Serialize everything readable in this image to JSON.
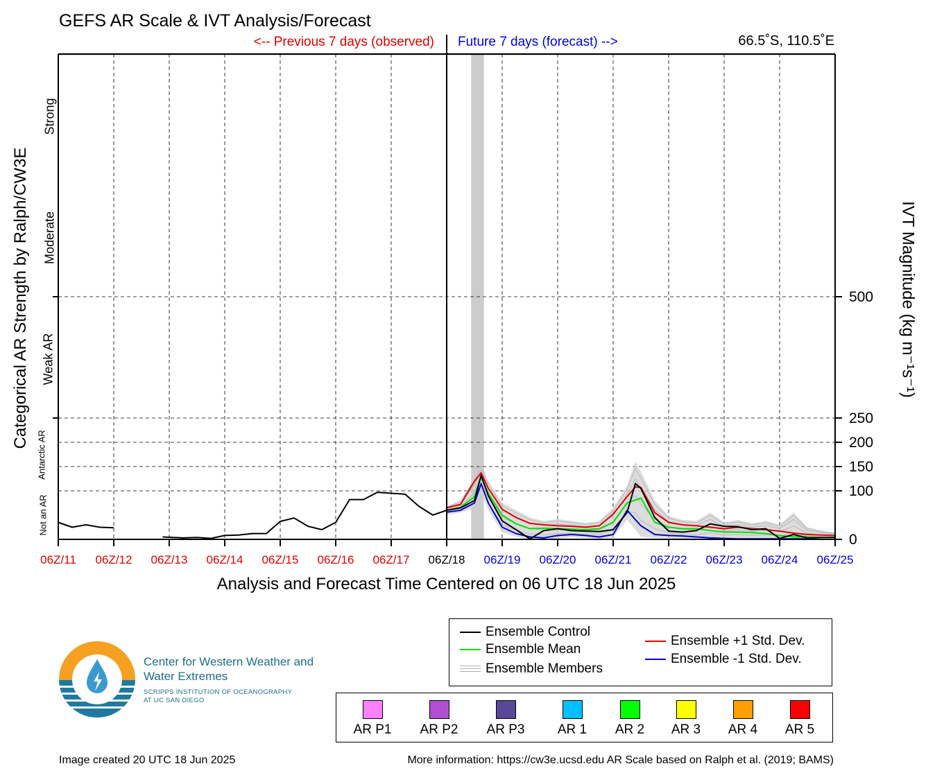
{
  "header": {
    "title": "GEFS AR Scale & IVT Analysis/Forecast",
    "prev_label": "<-- Previous 7 days (observed)",
    "future_label": "Future 7 days (forecast) -->",
    "location": "66.5˚S, 110.5˚E"
  },
  "colors": {
    "observed": "#e00000",
    "forecast": "#0000e0",
    "control": "#000000",
    "mean": "#00e000",
    "plus_std": "#e00000",
    "minus_std": "#0000d0",
    "members": "#b0b0b0",
    "shade": "#cccccc"
  },
  "chart_data": {
    "type": "line",
    "xlabel": "Analysis and Forecast Time Centered on 06 UTC 18 Jun 2025",
    "ylabel_left": "Categorical AR Strength by Ralph/CW3E",
    "ylabel_right": "IVT Magnitude (kg m⁻¹s⁻¹)",
    "x_ticks": [
      "06Z/11",
      "06Z/12",
      "06Z/13",
      "06Z/14",
      "06Z/15",
      "06Z/16",
      "06Z/17",
      "06Z/18",
      "06Z/19",
      "06Z/20",
      "06Z/21",
      "06Z/22",
      "06Z/23",
      "06Z/24",
      "06Z/25"
    ],
    "x_tick_colors": [
      "observed",
      "observed",
      "observed",
      "observed",
      "observed",
      "observed",
      "observed",
      "control",
      "forecast",
      "forecast",
      "forecast",
      "forecast",
      "forecast",
      "forecast",
      "forecast"
    ],
    "xlim": [
      0,
      14
    ],
    "ylim": [
      0,
      1000
    ],
    "y_ticks_right": [
      0,
      100,
      150,
      200,
      250,
      500
    ],
    "categories_left": [
      {
        "label": "Not an AR",
        "y": 50
      },
      {
        "label": "Antarctic AR",
        "y": 175
      },
      {
        "label": "Weak AR",
        "y": 375
      },
      {
        "label": "Moderate",
        "y": 625
      },
      {
        "label": "Strong",
        "y": 875
      }
    ],
    "vertical_line_x": 7,
    "shaded_band": [
      7.44,
      7.67
    ],
    "grid": "dashed",
    "series": [
      {
        "name": "Ensemble Control",
        "color_key": "control",
        "segments": [
          {
            "x": [
              0,
              0.25,
              0.5,
              0.75,
              1.0
            ],
            "y": [
              35,
              25,
              30,
              25,
              24
            ]
          },
          {
            "x": [
              1.88,
              2.25,
              2.5,
              2.75,
              3.0,
              3.25,
              3.5,
              3.75,
              4.0,
              4.25,
              4.5,
              4.75,
              5.0,
              5.25,
              5.5,
              5.75,
              6.0,
              6.25,
              6.5,
              6.75,
              7.0,
              7.25,
              7.5,
              7.62,
              7.75,
              8.0,
              8.25,
              8.5,
              8.75,
              9.0,
              9.25,
              9.5,
              9.75,
              10.0,
              10.25,
              10.4,
              10.5,
              10.75,
              11.0,
              11.25,
              11.5,
              11.75,
              12.0,
              12.25,
              12.5,
              12.75,
              13.0,
              13.25,
              13.5,
              13.75,
              14.0
            ],
            "y": [
              5,
              3,
              4,
              2,
              8,
              9,
              12,
              12,
              37,
              44,
              27,
              20,
              35,
              82,
              82,
              97,
              95,
              93,
              68,
              50,
              60,
              65,
              80,
              132,
              90,
              38,
              20,
              1,
              18,
              22,
              18,
              17,
              16,
              20,
              55,
              115,
              105,
              45,
              17,
              15,
              18,
              32,
              27,
              26,
              20,
              22,
              2,
              10,
              3,
              4,
              4
            ]
          }
        ]
      },
      {
        "name": "Ensemble Mean",
        "color_key": "mean",
        "segments": [
          {
            "x": [
              7.0,
              7.25,
              7.5,
              7.62,
              7.75,
              8.0,
              8.25,
              8.5,
              8.75,
              9.0,
              9.25,
              9.5,
              9.75,
              10.0,
              10.25,
              10.5,
              10.75,
              11.0,
              11.25,
              11.5,
              11.75,
              12.0,
              12.25,
              12.5,
              12.75,
              13.0,
              13.25,
              13.5,
              13.75,
              14.0
            ],
            "y": [
              60,
              66,
              88,
              128,
              95,
              50,
              32,
              22,
              23,
              22,
              21,
              20,
              22,
              35,
              75,
              85,
              35,
              25,
              22,
              22,
              18,
              15,
              15,
              14,
              12,
              8,
              5,
              5,
              4,
              4
            ]
          }
        ]
      },
      {
        "name": "Ensemble +1 Std. Dev.",
        "color_key": "plus_std",
        "segments": [
          {
            "x": [
              7.0,
              7.25,
              7.5,
              7.62,
              7.75,
              8.0,
              8.25,
              8.5,
              8.75,
              9.0,
              9.25,
              9.5,
              9.75,
              10.0,
              10.25,
              10.4,
              10.5,
              10.75,
              11.0,
              11.25,
              11.5,
              11.75,
              12.0,
              12.25,
              12.5,
              12.75,
              13.0,
              13.25,
              13.5,
              13.75,
              14.0
            ],
            "y": [
              65,
              72,
              120,
              137,
              105,
              62,
              45,
              33,
              30,
              28,
              27,
              25,
              28,
              52,
              88,
              108,
              107,
              55,
              35,
              30,
              28,
              25,
              22,
              25,
              22,
              20,
              17,
              13,
              10,
              9,
              8
            ]
          }
        ]
      },
      {
        "name": "Ensemble -1 Std. Dev.",
        "color_key": "minus_std",
        "segments": [
          {
            "x": [
              7.0,
              7.25,
              7.5,
              7.62,
              7.75,
              8.0,
              8.25,
              8.5,
              8.75,
              9.0,
              9.25,
              9.5,
              9.75,
              10.0,
              10.25,
              10.5,
              10.75,
              11.0,
              11.25,
              11.5,
              11.75,
              12.0,
              12.25,
              12.5,
              12.75,
              13.0,
              13.25,
              13.5,
              13.75,
              14.0
            ],
            "y": [
              56,
              60,
              75,
              115,
              75,
              25,
              12,
              5,
              3,
              8,
              10,
              8,
              5,
              10,
              60,
              28,
              10,
              8,
              7,
              5,
              3,
              2,
              1,
              1,
              1,
              1,
              1,
              1,
              0,
              0
            ]
          }
        ]
      }
    ],
    "member_envelope": {
      "x": [
        7.0,
        7.25,
        7.5,
        7.62,
        7.75,
        8.0,
        8.25,
        8.5,
        8.75,
        9.0,
        9.25,
        9.5,
        9.75,
        10.0,
        10.25,
        10.4,
        10.5,
        10.75,
        11.0,
        11.25,
        11.5,
        11.75,
        12.0,
        12.25,
        12.5,
        12.75,
        13.0,
        13.25,
        13.5,
        13.75,
        14.0
      ],
      "upper": [
        68,
        80,
        128,
        158,
        120,
        75,
        60,
        45,
        38,
        42,
        38,
        34,
        38,
        65,
        110,
        160,
        140,
        80,
        48,
        40,
        38,
        55,
        35,
        40,
        33,
        38,
        30,
        55,
        25,
        18,
        14
      ],
      "lower": [
        50,
        55,
        65,
        98,
        60,
        15,
        5,
        0,
        0,
        2,
        4,
        3,
        1,
        4,
        40,
        20,
        5,
        3,
        2,
        1,
        0,
        0,
        0,
        0,
        0,
        0,
        0,
        0,
        0,
        0,
        0
      ]
    }
  },
  "legend": {
    "control": "Ensemble Control",
    "mean": "Ensemble Mean",
    "members": "Ensemble Members",
    "plus_std": "Ensemble +1 Std. Dev.",
    "minus_std": "Ensemble -1 Std. Dev."
  },
  "ar_scale": [
    {
      "label": "AR P1",
      "color": "#ff80ff"
    },
    {
      "label": "AR P2",
      "color": "#b050d0"
    },
    {
      "label": "AR P3",
      "color": "#584898"
    },
    {
      "label": "AR 1",
      "color": "#00c0ff"
    },
    {
      "label": "AR 2",
      "color": "#00ff00"
    },
    {
      "label": "AR 3",
      "color": "#ffff00"
    },
    {
      "label": "AR 4",
      "color": "#ffa000"
    },
    {
      "label": "AR 5",
      "color": "#ff0000"
    }
  ],
  "org": {
    "name": "Center for Western Weather and Water Extremes",
    "sub_line1": "SCRIPPS INSTITUTION OF OCEANOGRAPHY",
    "sub_line2": "AT UC SAN DIEGO"
  },
  "footer": {
    "created": "Image created 20 UTC 18 Jun 2025",
    "more_info": "More information: https://cw3e.ucsd.edu AR Scale based on Ralph et al. (2019; BAMS)"
  }
}
